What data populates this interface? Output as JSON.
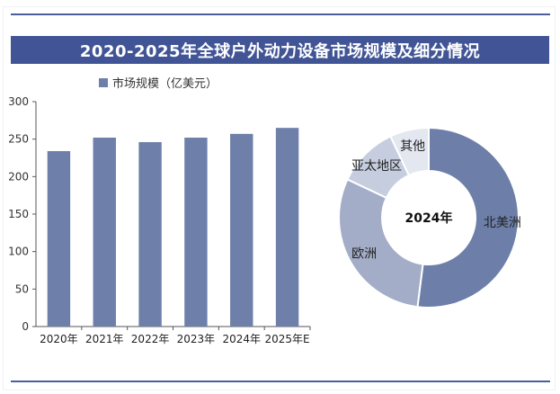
{
  "chart_title": "2020-2025年全球户外动力设备市场规模及细分情况",
  "chart_data": [
    {
      "type": "bar",
      "title": "",
      "series": [
        {
          "name": "市场规模（亿美元）",
          "values": [
            234,
            252,
            246,
            252,
            257,
            265
          ]
        }
      ],
      "categories": [
        "2020年",
        "2021年",
        "2022年",
        "2023年",
        "2024年",
        "2025年E"
      ],
      "ylim": [
        0,
        300
      ],
      "yticks": [
        0,
        50,
        100,
        150,
        200,
        250,
        300
      ],
      "grid": false,
      "legend": "top-left",
      "color": "#6e80aa"
    },
    {
      "type": "pie",
      "title": "",
      "center_label": "2024年",
      "slices": [
        {
          "label": "北美洲",
          "value": 52,
          "color": "#6d7fa9"
        },
        {
          "label": "欧洲",
          "value": 30,
          "color": "#a3adc8"
        },
        {
          "label": "亚太地区",
          "value": 11,
          "color": "#c6cddf"
        },
        {
          "label": "其他",
          "value": 7,
          "color": "#e3e7f0"
        }
      ]
    }
  ]
}
